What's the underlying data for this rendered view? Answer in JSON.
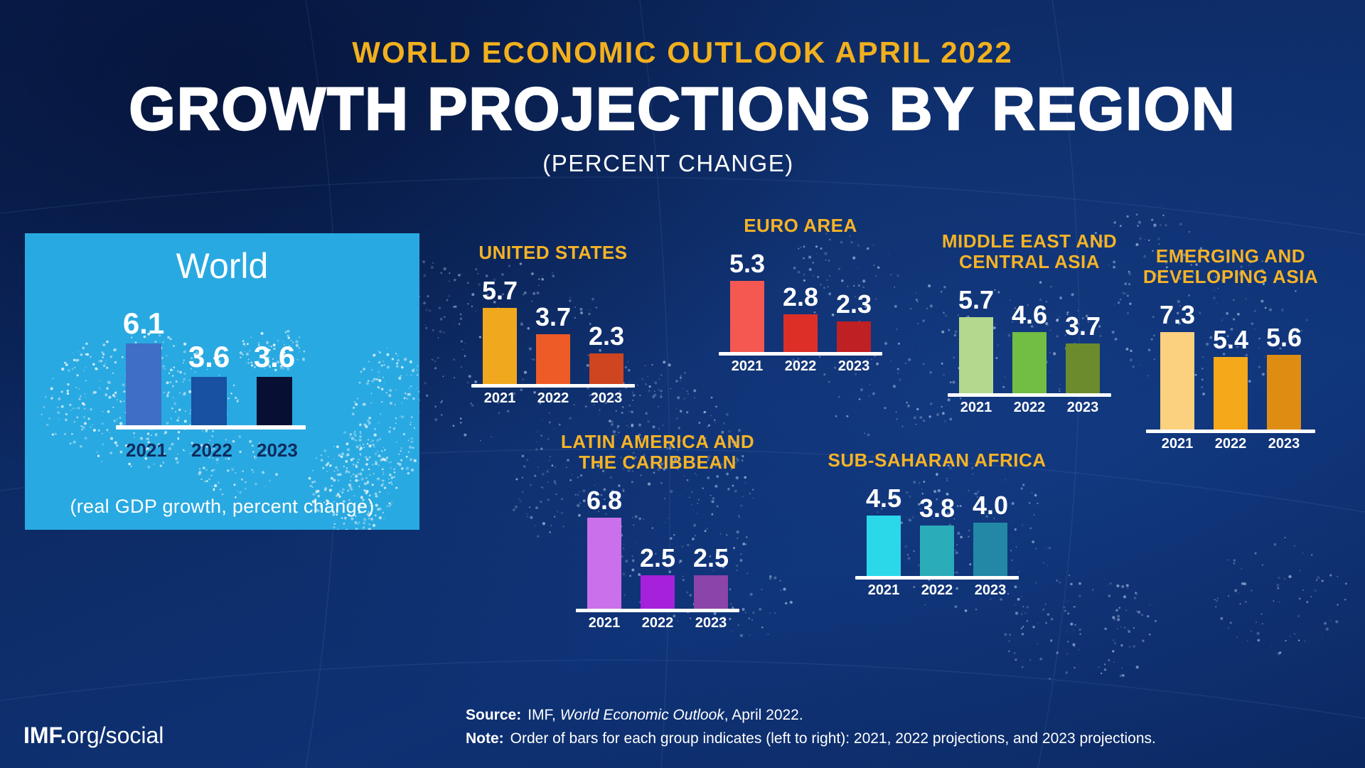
{
  "header": {
    "kicker": "WORLD ECONOMIC OUTLOOK APRIL 2022",
    "title": "GROWTH PROJECTIONS BY REGION",
    "subtitle": "(PERCENT CHANGE)"
  },
  "colors": {
    "background_navy": "#0d2c67",
    "gold_accent": "#F2B01E",
    "region_title_gold": "#F5B326",
    "world_panel_blue": "#29A9E1",
    "baseline_white": "#ffffff",
    "world_year_navy": "#0E2B5E"
  },
  "chart_data": [
    {
      "id": "world",
      "type": "bar",
      "title": "World",
      "categories": [
        "2021",
        "2022",
        "2023"
      ],
      "values": [
        6.1,
        3.6,
        3.6
      ],
      "value_labels": [
        "6.1",
        "3.6",
        "3.6"
      ],
      "bar_colors": [
        "#3E6EC6",
        "#17519F",
        "#071033"
      ],
      "note": "(real GDP growth, percent change)",
      "ylim": [
        0,
        8
      ],
      "grid": false,
      "legend": "none"
    },
    {
      "id": "united-states",
      "type": "bar",
      "title": "UNITED STATES",
      "title_lines": [
        "UNITED STATES"
      ],
      "categories": [
        "2021",
        "2022",
        "2023"
      ],
      "values": [
        5.7,
        3.7,
        2.3
      ],
      "value_labels": [
        "5.7",
        "3.7",
        "2.3"
      ],
      "bar_colors": [
        "#F0A81F",
        "#EE5B26",
        "#CE4520"
      ],
      "ylim": [
        0,
        8
      ],
      "grid": false,
      "legend": "none"
    },
    {
      "id": "euro-area",
      "type": "bar",
      "title": "EURO AREA",
      "title_lines": [
        "EURO AREA"
      ],
      "categories": [
        "2021",
        "2022",
        "2023"
      ],
      "values": [
        5.3,
        2.8,
        2.3
      ],
      "value_labels": [
        "5.3",
        "2.8",
        "2.3"
      ],
      "bar_colors": [
        "#F45850",
        "#DD2F28",
        "#BE2024"
      ],
      "ylim": [
        0,
        8
      ],
      "grid": false,
      "legend": "none"
    },
    {
      "id": "middle-east-and-central-asia",
      "type": "bar",
      "title": "MIDDLE EAST AND CENTRAL ASIA",
      "title_lines": [
        "MIDDLE EAST AND",
        "CENTRAL ASIA"
      ],
      "categories": [
        "2021",
        "2022",
        "2023"
      ],
      "values": [
        5.7,
        4.6,
        3.7
      ],
      "value_labels": [
        "5.7",
        "4.6",
        "3.7"
      ],
      "bar_colors": [
        "#B3D88E",
        "#72BD44",
        "#6C8B2C"
      ],
      "ylim": [
        0,
        8
      ],
      "grid": false,
      "legend": "none"
    },
    {
      "id": "emerging-and-developing-asia",
      "type": "bar",
      "title": "EMERGING AND DEVELOPING ASIA",
      "title_lines": [
        "EMERGING AND",
        "DEVELOPING ASIA"
      ],
      "categories": [
        "2021",
        "2022",
        "2023"
      ],
      "values": [
        7.3,
        5.4,
        5.6
      ],
      "value_labels": [
        "7.3",
        "5.4",
        "5.6"
      ],
      "bar_colors": [
        "#FBD180",
        "#F5A819",
        "#DE8D12"
      ],
      "ylim": [
        0,
        8
      ],
      "grid": false,
      "legend": "none"
    },
    {
      "id": "latin-america-and-the-caribbean",
      "type": "bar",
      "title": "LATIN AMERICA AND THE CARIBBEAN",
      "title_lines": [
        "LATIN AMERICA AND",
        "THE CARIBBEAN"
      ],
      "categories": [
        "2021",
        "2022",
        "2023"
      ],
      "values": [
        6.8,
        2.5,
        2.5
      ],
      "value_labels": [
        "6.8",
        "2.5",
        "2.5"
      ],
      "bar_colors": [
        "#CA70EA",
        "#A621DC",
        "#8B44A9"
      ],
      "ylim": [
        0,
        8
      ],
      "grid": false,
      "legend": "none"
    },
    {
      "id": "sub-saharan-africa",
      "type": "bar",
      "title": "SUB-SAHARAN AFRICA",
      "title_lines": [
        "SUB-SAHARAN AFRICA"
      ],
      "categories": [
        "2021",
        "2022",
        "2023"
      ],
      "values": [
        4.5,
        3.8,
        4.0
      ],
      "value_labels": [
        "4.5",
        "3.8",
        "4.0"
      ],
      "bar_colors": [
        "#2BD8EA",
        "#2BACB9",
        "#2387A6"
      ],
      "ylim": [
        0,
        8
      ],
      "grid": false,
      "legend": "none"
    }
  ],
  "footer": {
    "brand": {
      "bold": "IMF.",
      "rest": "org/social"
    },
    "source": {
      "label": "Source:",
      "pre": "IMF, ",
      "italic": "World Economic Outlook",
      "post": ", April 2022."
    },
    "note": {
      "label": "Note:",
      "text": "Order of bars for each group indicates (left to right): 2021, 2022 projections, and 2023 projections."
    }
  }
}
